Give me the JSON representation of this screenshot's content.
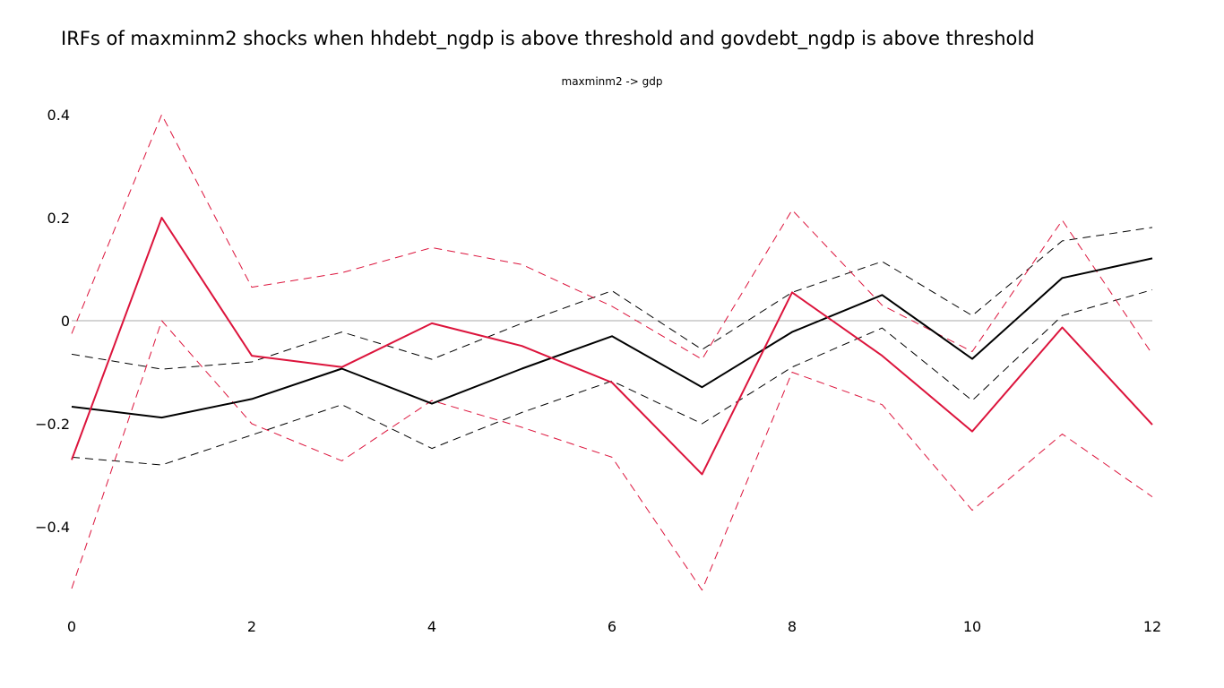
{
  "chart_data": {
    "type": "line",
    "title": "IRFs of maxminm2 shocks when hhdebt_ngdp is above threshold and govdebt_ngdp is above threshold",
    "subtitle": "maxminm2 -> gdp",
    "xlabel": "",
    "ylabel": "",
    "x": [
      0,
      1,
      2,
      3,
      4,
      5,
      6,
      7,
      8,
      9,
      10,
      11,
      12
    ],
    "x_ticks": [
      0,
      2,
      4,
      6,
      8,
      10,
      12
    ],
    "x_tick_labels": [
      "0",
      "2",
      "4",
      "6",
      "8",
      "10",
      "12"
    ],
    "y_ticks": [
      0.4,
      0.2,
      0,
      -0.2,
      -0.4
    ],
    "y_tick_labels": [
      "0.4",
      "0.2",
      "0",
      "−0.2",
      "−0.4"
    ],
    "xlim": [
      0,
      12
    ],
    "ylim": [
      -0.575,
      0.43
    ],
    "grid": false,
    "zero_line": true,
    "legend": "none",
    "colors": {
      "black": "#000000",
      "crimson": "#dc143c",
      "zero_line": "#a9a9a9"
    },
    "series": [
      {
        "color": "black",
        "style": "solid",
        "values": [
          -0.167,
          -0.188,
          -0.152,
          -0.093,
          -0.161,
          -0.093,
          -0.03,
          -0.129,
          -0.022,
          0.05,
          -0.074,
          0.083,
          0.121
        ]
      },
      {
        "color": "black",
        "style": "dashed",
        "values": [
          -0.065,
          -0.094,
          -0.08,
          -0.022,
          -0.075,
          -0.005,
          0.058,
          -0.056,
          0.055,
          0.115,
          0.01,
          0.155,
          0.181
        ]
      },
      {
        "color": "black",
        "style": "dashed",
        "values": [
          -0.265,
          -0.28,
          -0.222,
          -0.163,
          -0.248,
          -0.178,
          -0.117,
          -0.2,
          -0.09,
          -0.014,
          -0.155,
          0.01,
          0.06
        ]
      },
      {
        "color": "crimson",
        "style": "solid",
        "values": [
          -0.27,
          0.2,
          -0.068,
          -0.09,
          -0.005,
          -0.049,
          -0.12,
          -0.298,
          0.055,
          -0.068,
          -0.215,
          -0.013,
          -0.202
        ]
      },
      {
        "color": "crimson",
        "style": "dashed",
        "values": [
          -0.025,
          0.4,
          0.065,
          0.093,
          0.142,
          0.109,
          0.028,
          -0.075,
          0.215,
          0.03,
          -0.06,
          0.195,
          -0.065
        ]
      },
      {
        "color": "crimson",
        "style": "dashed",
        "values": [
          -0.52,
          0.0,
          -0.2,
          -0.272,
          -0.155,
          -0.207,
          -0.265,
          -0.523,
          -0.1,
          -0.163,
          -0.368,
          -0.22,
          -0.342
        ]
      }
    ]
  }
}
